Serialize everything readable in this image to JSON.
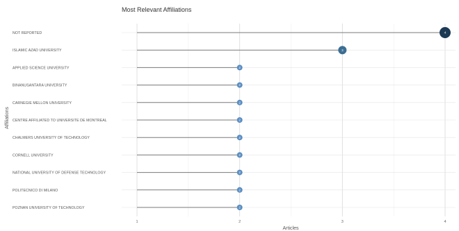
{
  "chart_data": {
    "type": "lollipop",
    "title": "Most Relevant Affiliations",
    "xlabel": "Articles",
    "ylabel": "Affiliations",
    "xlim": [
      1,
      4
    ],
    "xticks": [
      "1",
      "2",
      "3",
      "4"
    ],
    "grid": true,
    "categories": [
      "NOT REPORTED",
      "ISLAMIC AZAD UNIVERSITY",
      "APPLIED SCIENCE UNIVERSITY",
      "BINANUSANTARA UNIVERSITY",
      "CARNEGIE MELLON UNIVERSITY",
      "CENTRE AFFILIATED TO UNIVERSITE DE MONTREAL",
      "CHALMERS UNIVERSITY OF TECHNOLOGY",
      "CORNELL UNIVERSITY",
      "NATIONAL UNIVERSITY OF DEFENSE TECHNOLOGY",
      "POLITECNICO DI MILANO",
      "POZNAN UNIVERSITY OF TECHNOLOGY"
    ],
    "values": [
      4,
      3,
      2,
      2,
      2,
      2,
      2,
      2,
      2,
      2,
      2
    ],
    "colors": {
      "low": "#5b8ec2",
      "mid": "#3c6e93",
      "high": "#1d3a55"
    }
  }
}
